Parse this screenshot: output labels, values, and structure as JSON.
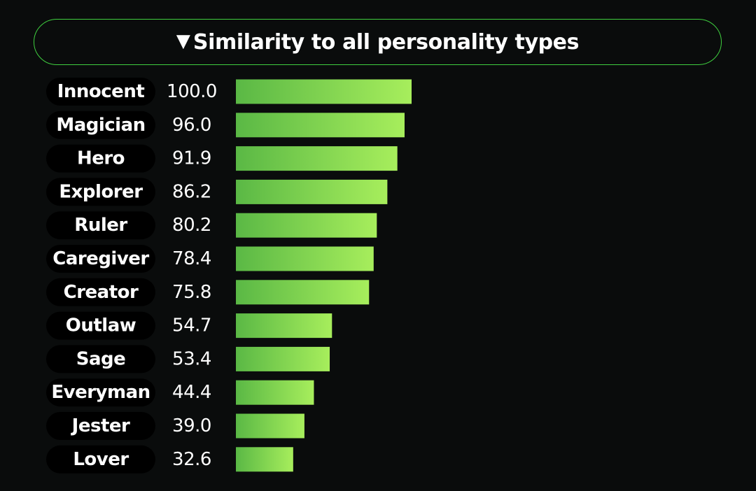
{
  "header": {
    "toggle_icon": "▼",
    "title": "Similarity to all personality types"
  },
  "colors": {
    "accent_border": "#3fcf3f",
    "bar_gradient_start": "#5ab845",
    "bar_gradient_end": "#a7ee5c",
    "label_pill_bg": "#000000",
    "background": "#0a0c0c"
  },
  "chart_data": {
    "type": "bar",
    "orientation": "horizontal",
    "categories": [
      "Innocent",
      "Magician",
      "Hero",
      "Explorer",
      "Ruler",
      "Caregiver",
      "Creator",
      "Outlaw",
      "Sage",
      "Everyman",
      "Jester",
      "Lover"
    ],
    "values": [
      100.0,
      96.0,
      91.9,
      86.2,
      80.2,
      78.4,
      75.8,
      54.7,
      53.4,
      44.4,
      39.0,
      32.6
    ],
    "value_labels": [
      "100.0",
      "96.0",
      "91.9",
      "86.2",
      "80.2",
      "78.4",
      "75.8",
      "54.7",
      "53.4",
      "44.4",
      "39.0",
      "32.6"
    ],
    "xlim": [
      0,
      100
    ],
    "grid": false,
    "legend": "none"
  }
}
